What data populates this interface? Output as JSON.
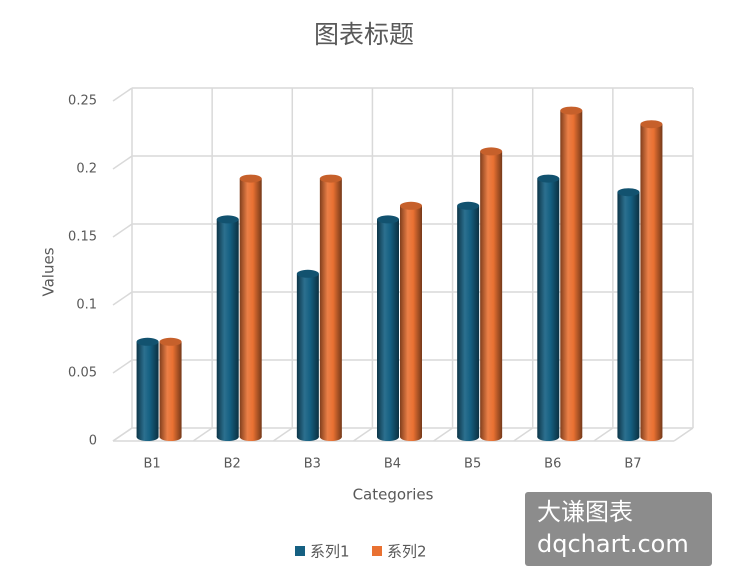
{
  "chart_data": {
    "type": "bar",
    "title": "图表标题",
    "x_label": "Categories",
    "y_label": "Values",
    "categories": [
      "B1",
      "B2",
      "B3",
      "B4",
      "B5",
      "B6",
      "B7"
    ],
    "series": [
      {
        "name": "系列1",
        "color": "#156082",
        "values": [
          0.07,
          0.16,
          0.12,
          0.16,
          0.17,
          0.19,
          0.18
        ]
      },
      {
        "name": "系列2",
        "color": "#E97132",
        "values": [
          0.07,
          0.19,
          0.19,
          0.17,
          0.21,
          0.24,
          0.23
        ]
      }
    ],
    "ylim": [
      0,
      0.25
    ],
    "yticks": [
      0,
      0.05,
      0.1,
      0.15,
      0.2,
      0.25
    ],
    "grid": true,
    "legend": "bottom"
  },
  "watermark": {
    "line1": "大谦图表",
    "line2": "dqchart.com"
  }
}
